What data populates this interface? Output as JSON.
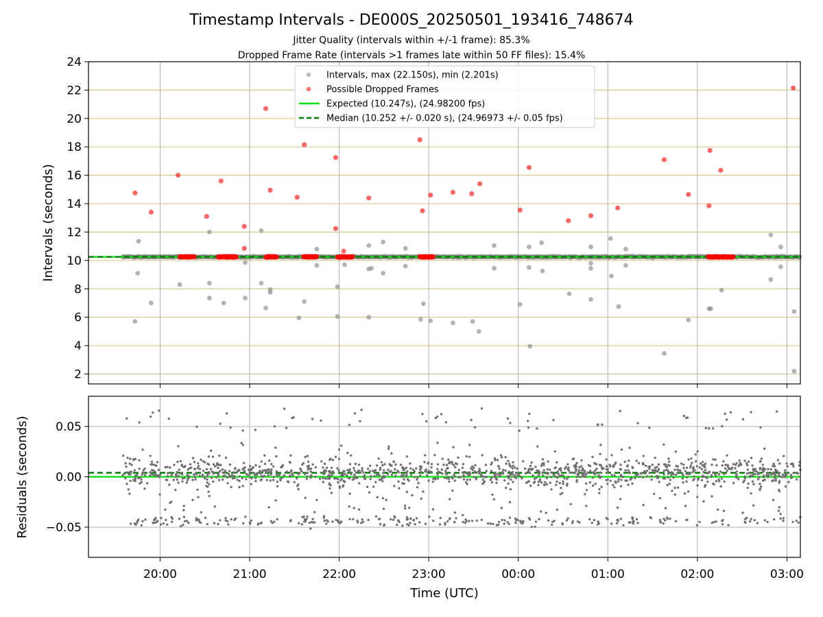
{
  "figure": {
    "title": "Timestamp Intervals - DE000S_20250501_193416_748674",
    "subtitle1": "Jitter Quality (intervals within +/-1 frame): 85.3%",
    "subtitle2": "Dropped Frame Rate (intervals >1 frames late within 50 FF files): 15.4%",
    "xlabel": "Time (UTC)",
    "colors": {
      "intervals": "#808080",
      "dropped": "#ff0000",
      "expected": "#00e000",
      "median": "#007a00",
      "hgrid": "#c8a84b",
      "vgrid": "#b0b0b0"
    }
  },
  "legend": {
    "intervals": "Intervals, max (22.150s), min (2.201s)",
    "dropped": "Possible Dropped Frames",
    "expected": "Expected (10.247s), (24.98200 fps)",
    "median": "Median (10.252 +/- 0.020 s), (24.96973 +/- 0.05 fps)"
  },
  "chart_data": [
    {
      "type": "scatter",
      "ylabel": "Intervals (seconds)",
      "ylim": [
        1.3,
        24
      ],
      "yticks": [
        2,
        4,
        6,
        8,
        10,
        12,
        14,
        16,
        18,
        20,
        22,
        24
      ],
      "xticks": [
        "20:00",
        "21:00",
        "22:00",
        "23:00",
        "00:00",
        "01:00",
        "02:00",
        "03:00"
      ],
      "xlim_hours": [
        19.2,
        27.15
      ],
      "grid": "on",
      "legend_position": "top-center",
      "expected": 10.247,
      "median": 10.252,
      "series": [
        {
          "name": "Intervals, max (22.150s), min (2.201s)",
          "band": {
            "x_range_hours": [
              19.58,
              27.15
            ],
            "center": 10.25,
            "spread": 0.05
          },
          "points": [
            [
              19.72,
              5.7
            ],
            [
              19.75,
              9.1
            ],
            [
              19.76,
              11.35
            ],
            [
              19.9,
              7.0
            ],
            [
              20.22,
              8.3
            ],
            [
              20.55,
              12.0
            ],
            [
              20.55,
              8.4
            ],
            [
              20.55,
              7.35
            ],
            [
              20.71,
              7.0
            ],
            [
              20.95,
              7.35
            ],
            [
              20.95,
              9.85
            ],
            [
              21.13,
              12.1
            ],
            [
              21.13,
              8.4
            ],
            [
              21.18,
              6.65
            ],
            [
              21.23,
              7.95
            ],
            [
              21.23,
              7.75
            ],
            [
              21.55,
              5.95
            ],
            [
              21.61,
              7.1
            ],
            [
              21.75,
              10.8
            ],
            [
              21.75,
              9.65
            ],
            [
              21.98,
              8.15
            ],
            [
              21.98,
              6.05
            ],
            [
              22.06,
              9.7
            ],
            [
              22.33,
              11.05
            ],
            [
              22.33,
              9.4
            ],
            [
              22.33,
              6.0
            ],
            [
              22.36,
              9.45
            ],
            [
              22.49,
              11.3
            ],
            [
              22.49,
              9.1
            ],
            [
              22.74,
              10.85
            ],
            [
              22.74,
              9.6
            ],
            [
              22.91,
              5.85
            ],
            [
              22.94,
              6.95
            ],
            [
              23.02,
              5.75
            ],
            [
              23.27,
              5.6
            ],
            [
              23.49,
              5.7
            ],
            [
              23.56,
              5.0
            ],
            [
              23.73,
              11.05
            ],
            [
              23.73,
              9.45
            ],
            [
              24.02,
              6.9
            ],
            [
              24.12,
              10.95
            ],
            [
              24.12,
              9.5
            ],
            [
              24.13,
              3.95
            ],
            [
              24.26,
              11.25
            ],
            [
              24.27,
              9.25
            ],
            [
              24.57,
              7.65
            ],
            [
              24.81,
              10.95
            ],
            [
              24.81,
              9.8
            ],
            [
              24.81,
              9.45
            ],
            [
              24.81,
              7.25
            ],
            [
              25.03,
              11.55
            ],
            [
              25.04,
              8.9
            ],
            [
              25.12,
              6.75
            ],
            [
              25.2,
              10.8
            ],
            [
              25.2,
              9.65
            ],
            [
              25.63,
              3.45
            ],
            [
              25.9,
              5.8
            ],
            [
              26.13,
              6.6
            ],
            [
              26.15,
              6.6
            ],
            [
              26.27,
              7.9
            ],
            [
              26.82,
              11.8
            ],
            [
              26.82,
              8.65
            ],
            [
              26.93,
              10.95
            ],
            [
              26.93,
              9.55
            ],
            [
              27.08,
              6.4
            ],
            [
              27.08,
              2.2
            ]
          ]
        },
        {
          "name": "Possible Dropped Frames",
          "points": [
            [
              19.72,
              14.75
            ],
            [
              19.9,
              13.4
            ],
            [
              20.2,
              16.0
            ],
            [
              20.52,
              13.1
            ],
            [
              20.68,
              15.6
            ],
            [
              20.94,
              12.4
            ],
            [
              20.94,
              10.85
            ],
            [
              21.18,
              20.7
            ],
            [
              21.23,
              14.95
            ],
            [
              21.53,
              14.45
            ],
            [
              21.61,
              18.15
            ],
            [
              21.96,
              17.25
            ],
            [
              21.96,
              12.25
            ],
            [
              22.05,
              10.65
            ],
            [
              22.33,
              14.4
            ],
            [
              22.9,
              18.5
            ],
            [
              22.93,
              13.5
            ],
            [
              23.02,
              14.6
            ],
            [
              23.27,
              14.8
            ],
            [
              23.48,
              14.7
            ],
            [
              23.57,
              15.4
            ],
            [
              24.02,
              13.55
            ],
            [
              24.12,
              16.55
            ],
            [
              24.56,
              12.8
            ],
            [
              24.81,
              13.15
            ],
            [
              25.11,
              13.7
            ],
            [
              25.63,
              17.1
            ],
            [
              25.9,
              14.65
            ],
            [
              26.13,
              13.85
            ],
            [
              26.14,
              17.75
            ],
            [
              26.26,
              16.35
            ],
            [
              27.07,
              22.15
            ]
          ],
          "clusters": [
            [
              20.22,
              20.38
            ],
            [
              20.65,
              20.85
            ],
            [
              21.18,
              21.3
            ],
            [
              21.6,
              21.75
            ],
            [
              21.98,
              22.15
            ],
            [
              22.9,
              23.05
            ],
            [
              26.12,
              26.4
            ]
          ],
          "cluster_value": 10.25
        }
      ]
    },
    {
      "type": "scatter",
      "ylabel": "Residuals (seconds)",
      "ylim": [
        -0.08,
        0.08
      ],
      "yticks": [
        -0.05,
        0.0,
        0.05
      ],
      "ytick_labels": [
        "−0.05",
        "0.00",
        "0.05"
      ],
      "xticks": [
        "20:00",
        "21:00",
        "22:00",
        "23:00",
        "00:00",
        "01:00",
        "02:00",
        "03:00"
      ],
      "xlim_hours": [
        19.2,
        27.15
      ],
      "grid": "on",
      "expected": 0.0,
      "median": 0.004,
      "series": [
        {
          "name": "Residuals",
          "x_range_hours": [
            19.58,
            27.15
          ],
          "main_band": {
            "center": 0.004,
            "spread": 0.012
          },
          "lower_band": {
            "center": -0.044,
            "spread": 0.005
          },
          "upper_outliers_range": [
            0.045,
            0.068
          ]
        }
      ]
    }
  ]
}
